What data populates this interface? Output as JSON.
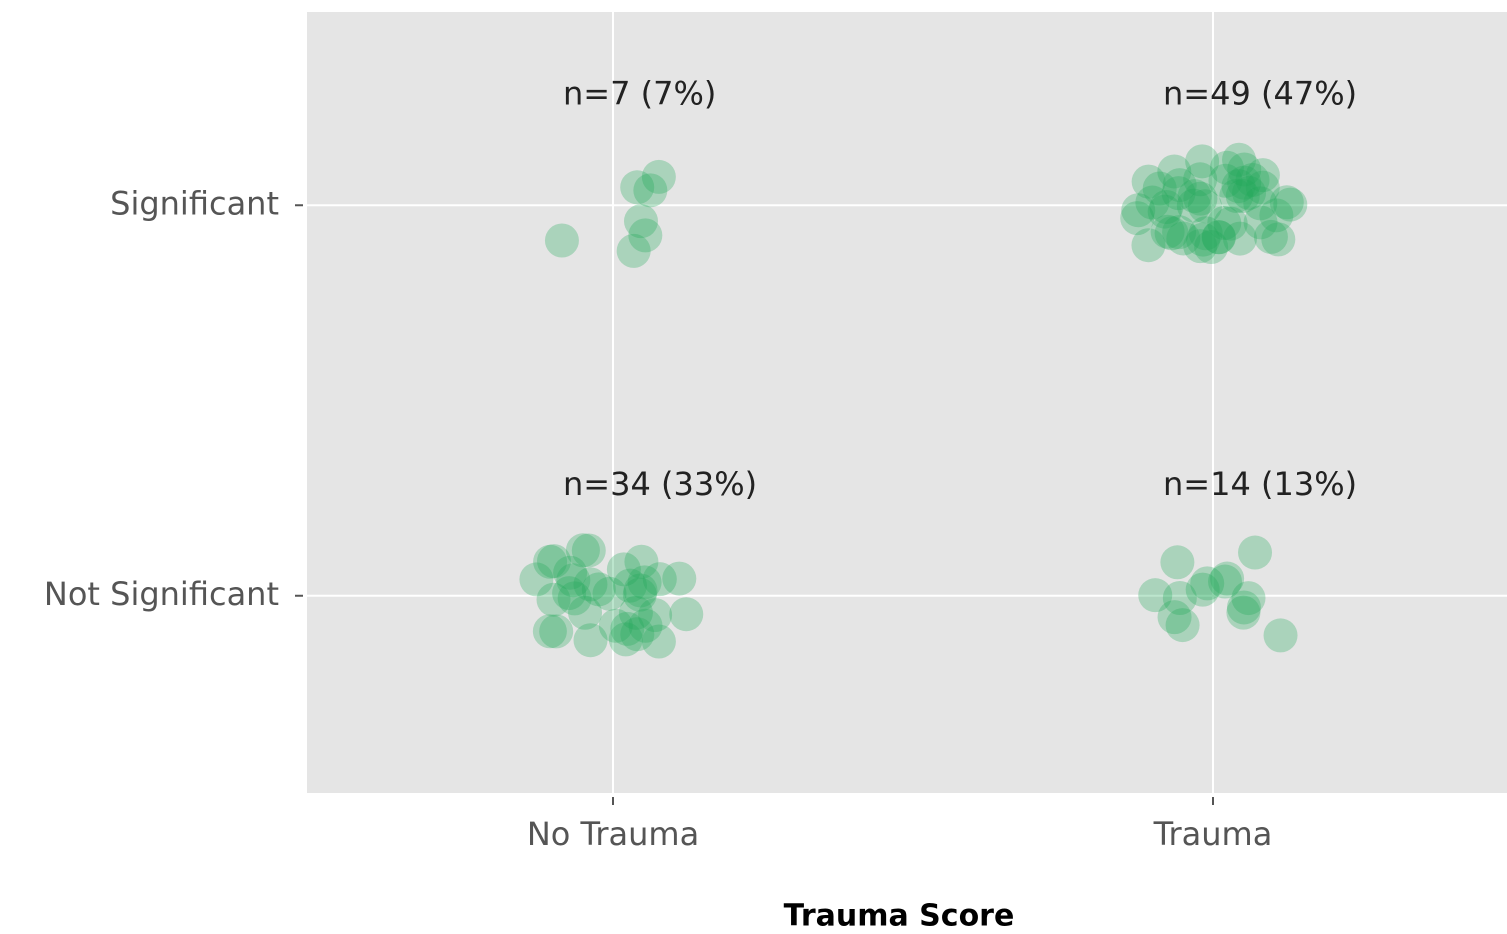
{
  "chart_data": {
    "type": "jitter",
    "xlabel": "Trauma Score",
    "x_categories": [
      "No Trauma",
      "Trauma"
    ],
    "y_categories": [
      "Significant",
      "Not Significant"
    ],
    "values": [
      [
        7,
        49
      ],
      [
        34,
        14
      ]
    ],
    "value_labels": [
      [
        "n=7 (7%)",
        "n=49 (47%)"
      ],
      [
        "n=34 (33%)",
        "n=14 (13%)"
      ]
    ],
    "color": "#22a85a",
    "grid": true
  }
}
